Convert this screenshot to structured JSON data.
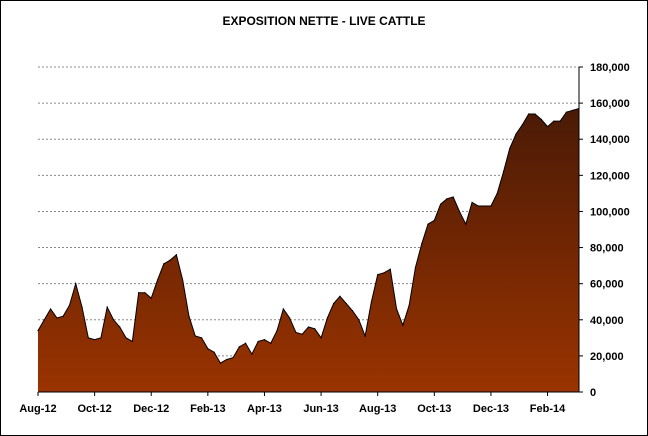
{
  "chart_data": {
    "type": "area",
    "title": "EXPOSITION NETTE - LIVE CATTLE",
    "xlabel": "",
    "ylabel": "",
    "ylim": [
      0,
      180000
    ],
    "y_ticks": [
      0,
      20000,
      40000,
      60000,
      80000,
      100000,
      120000,
      140000,
      160000,
      180000
    ],
    "y_tick_labels": [
      "0",
      "20,000",
      "40,000",
      "60,000",
      "80,000",
      "100,000",
      "120,000",
      "140,000",
      "160,000",
      "180,000"
    ],
    "y_axis_side": "right",
    "grid": "horizontal-dotted",
    "x_tick_labels": [
      "Aug-12",
      "Oct-12",
      "Dec-12",
      "Feb-13",
      "Apr-13",
      "Jun-13",
      "Aug-13",
      "Oct-13",
      "Dec-13",
      "Feb-14"
    ],
    "x_tick_index": [
      0,
      9,
      18,
      27,
      36,
      45,
      54,
      63,
      72,
      81
    ],
    "fill_gradient": [
      "#4a1a06",
      "#9a3300"
    ],
    "series": [
      {
        "values": [
          34000,
          40000,
          46000,
          41000,
          42000,
          48000,
          60000,
          47000,
          30000,
          29000,
          30000,
          47000,
          40000,
          36000,
          30000,
          28000,
          55000,
          55000,
          52000,
          62000,
          71000,
          73000,
          76000,
          62000,
          42000,
          31000,
          30000,
          24000,
          22000,
          16000,
          18000,
          19000,
          25000,
          27000,
          21000,
          28000,
          29000,
          27000,
          34000,
          46000,
          41000,
          33000,
          32000,
          36000,
          35000,
          30000,
          41000,
          49000,
          53000,
          49000,
          45000,
          40000,
          31000,
          50000,
          65000,
          66000,
          68000,
          46000,
          37000,
          48000,
          69000,
          82000,
          93000,
          95000,
          104000,
          107000,
          108000,
          100000,
          93000,
          105000,
          103000,
          103000,
          103000,
          110000,
          122000,
          135000,
          143000,
          148000,
          154000,
          154000,
          151000,
          147000,
          150000,
          150000,
          155000,
          156000,
          157000
        ]
      }
    ]
  }
}
